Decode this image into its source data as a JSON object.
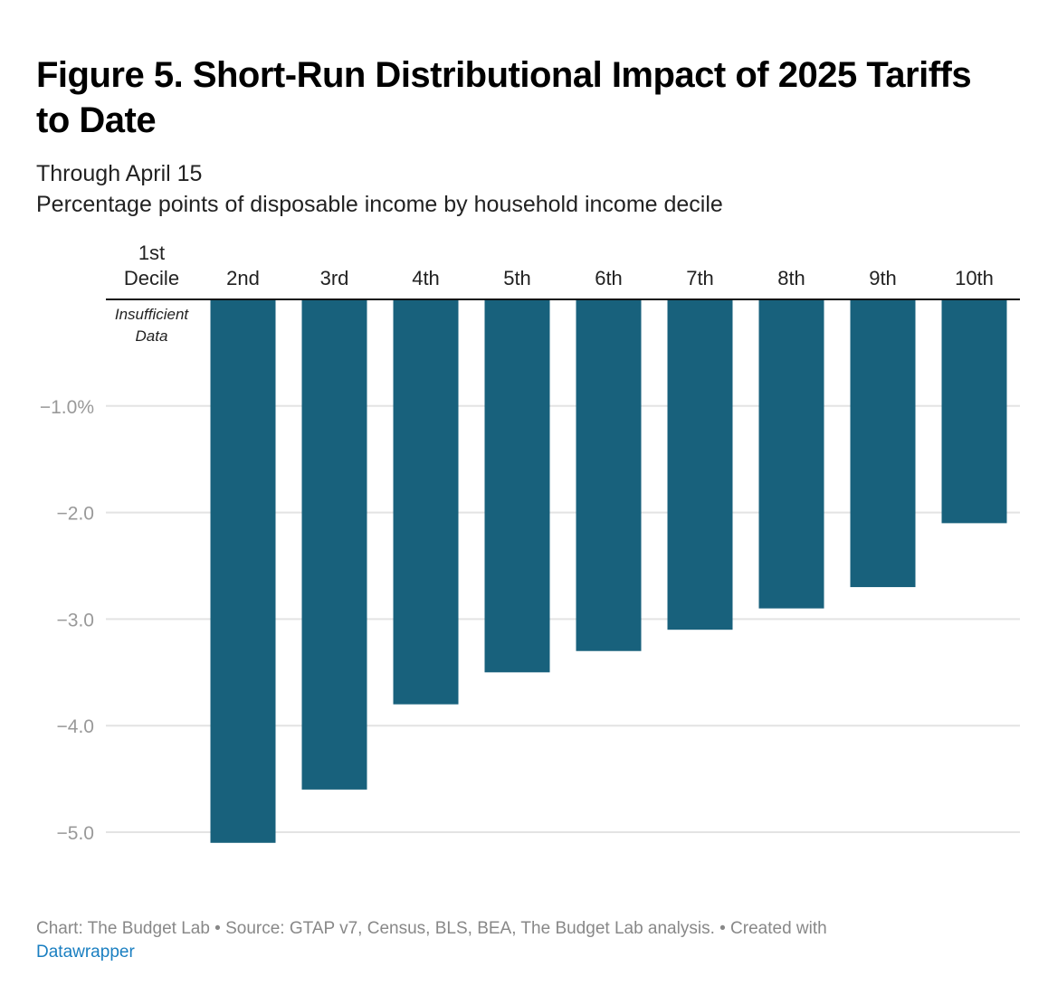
{
  "title": "Figure 5. Short-Run Distributional Impact of 2025 Tariffs to Date",
  "subtitle_1": "Through April 15",
  "subtitle_2": "Percentage points of disposable income by household income decile",
  "footer": {
    "text": "Chart: The Budget Lab • Source: GTAP v7, Census, BLS, BEA, The Budget Lab analysis. • Created with",
    "link": "Datawrapper"
  },
  "chart_data": {
    "type": "bar",
    "title": "Figure 5. Short-Run Distributional Impact of 2025 Tariffs to Date",
    "xlabel": "",
    "ylabel": "Percentage points of disposable income",
    "categories": [
      "1st Decile",
      "2nd",
      "3rd",
      "4th",
      "5th",
      "6th",
      "7th",
      "8th",
      "9th",
      "10th"
    ],
    "values": [
      null,
      -5.1,
      -4.6,
      -3.8,
      -3.5,
      -3.3,
      -3.1,
      -2.9,
      -2.7,
      -2.1
    ],
    "annotations": [
      {
        "category": "1st Decile",
        "text": "Insufficient Data"
      }
    ],
    "yticks": [
      -1,
      -2,
      -3,
      -4,
      -5
    ],
    "ytick_labels": [
      "−1.0%",
      "−2.0",
      "−3.0",
      "−4.0",
      "−5.0"
    ],
    "ylim": [
      -5.3,
      0
    ],
    "grid": true,
    "bar_color": "#18617c"
  }
}
